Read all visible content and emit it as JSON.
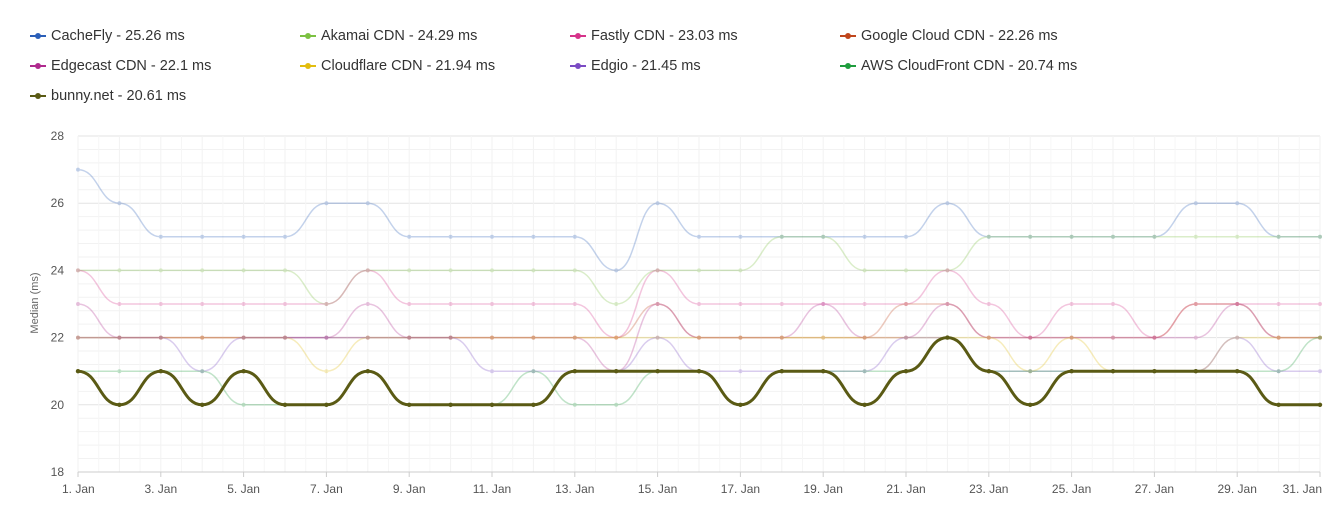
{
  "chart_data": {
    "type": "line",
    "ylabel": "Median (ms)",
    "xlabel": "",
    "ylim": [
      18,
      28
    ],
    "yticks": [
      18,
      20,
      22,
      24,
      26,
      28
    ],
    "x": [
      "1. Jan",
      "2. Jan",
      "3. Jan",
      "4. Jan",
      "5. Jan",
      "6. Jan",
      "7. Jan",
      "8. Jan",
      "9. Jan",
      "10. Jan",
      "11. Jan",
      "12. Jan",
      "13. Jan",
      "14. Jan",
      "15. Jan",
      "16. Jan",
      "17. Jan",
      "18. Jan",
      "19. Jan",
      "20. Jan",
      "21. Jan",
      "22. Jan",
      "23. Jan",
      "24. Jan",
      "25. Jan",
      "26. Jan",
      "27. Jan",
      "28. Jan",
      "29. Jan",
      "30. Jan",
      "31. Jan"
    ],
    "xtick_labels": [
      "1. Jan",
      "3. Jan",
      "5. Jan",
      "7. Jan",
      "9. Jan",
      "11. Jan",
      "13. Jan",
      "15. Jan",
      "17. Jan",
      "19. Jan",
      "21. Jan",
      "23. Jan",
      "25. Jan",
      "27. Jan",
      "29. Jan",
      "31. Jan"
    ],
    "grid": true,
    "legend_position": "top",
    "series": [
      {
        "name": "CacheFly",
        "legend": "CacheFly - 25.26 ms",
        "color": "#2b5fb8",
        "highlight": false,
        "values": [
          27,
          26,
          25,
          25,
          25,
          25,
          26,
          26,
          25,
          25,
          25,
          25,
          25,
          24,
          26,
          25,
          25,
          25,
          25,
          25,
          25,
          26,
          25,
          25,
          25,
          25,
          25,
          26,
          26,
          25,
          25
        ]
      },
      {
        "name": "Akamai CDN",
        "legend": "Akamai CDN - 24.29 ms",
        "color": "#7cc142",
        "highlight": false,
        "values": [
          24,
          24,
          24,
          24,
          24,
          24,
          23,
          24,
          24,
          24,
          24,
          24,
          24,
          23,
          24,
          24,
          24,
          25,
          25,
          24,
          24,
          24,
          25,
          25,
          25,
          25,
          25,
          25,
          25,
          25,
          25
        ]
      },
      {
        "name": "Fastly CDN",
        "legend": "Fastly CDN - 23.03 ms",
        "color": "#d6338a",
        "highlight": false,
        "values": [
          24,
          23,
          23,
          23,
          23,
          23,
          23,
          24,
          23,
          23,
          23,
          23,
          23,
          22,
          24,
          23,
          23,
          23,
          23,
          23,
          23,
          24,
          23,
          22,
          23,
          23,
          22,
          23,
          23,
          23,
          23
        ]
      },
      {
        "name": "Google Cloud CDN",
        "legend": "Google Cloud CDN - 22.26 ms",
        "color": "#c0461c",
        "highlight": false,
        "values": [
          22,
          22,
          22,
          22,
          22,
          22,
          22,
          22,
          22,
          22,
          22,
          22,
          22,
          22,
          23,
          22,
          22,
          22,
          22,
          22,
          23,
          23,
          22,
          22,
          22,
          22,
          22,
          23,
          23,
          22,
          22
        ]
      },
      {
        "name": "Edgecast CDN",
        "legend": "Edgecast CDN - 22.1 ms",
        "color": "#b02a8e",
        "highlight": false,
        "values": [
          23,
          22,
          22,
          22,
          22,
          22,
          22,
          23,
          22,
          22,
          22,
          22,
          22,
          21,
          23,
          22,
          22,
          22,
          23,
          22,
          22,
          23,
          22,
          22,
          22,
          22,
          22,
          22,
          23,
          22,
          22
        ]
      },
      {
        "name": "Cloudflare CDN",
        "legend": "Cloudflare CDN - 21.94 ms",
        "color": "#e2bd0f",
        "highlight": false,
        "values": [
          22,
          22,
          22,
          22,
          22,
          22,
          21,
          22,
          22,
          22,
          22,
          22,
          22,
          22,
          22,
          22,
          22,
          22,
          22,
          22,
          22,
          22,
          22,
          21,
          22,
          21,
          21,
          21,
          22,
          22,
          22
        ]
      },
      {
        "name": "Edgio",
        "legend": "Edgio - 21.45 ms",
        "color": "#7b4bc4",
        "highlight": false,
        "values": [
          22,
          22,
          22,
          21,
          22,
          22,
          22,
          22,
          22,
          22,
          21,
          21,
          21,
          21,
          22,
          21,
          21,
          21,
          21,
          21,
          22,
          22,
          21,
          21,
          21,
          21,
          21,
          21,
          22,
          21,
          21
        ]
      },
      {
        "name": "AWS CloudFront CDN",
        "legend": "AWS CloudFront CDN - 20.74 ms",
        "color": "#1f9d3e",
        "highlight": false,
        "values": [
          21,
          21,
          21,
          21,
          20,
          20,
          20,
          21,
          20,
          20,
          20,
          21,
          20,
          20,
          21,
          21,
          20,
          21,
          21,
          21,
          21,
          22,
          21,
          21,
          21,
          21,
          21,
          21,
          21,
          21,
          22
        ]
      },
      {
        "name": "bunny.net",
        "legend": "bunny.net - 20.61 ms",
        "color": "#5a5a14",
        "highlight": true,
        "values": [
          21,
          20,
          21,
          20,
          21,
          20,
          20,
          21,
          20,
          20,
          20,
          20,
          21,
          21,
          21,
          21,
          20,
          21,
          21,
          20,
          21,
          22,
          21,
          20,
          21,
          21,
          21,
          21,
          21,
          20,
          20
        ]
      }
    ]
  }
}
